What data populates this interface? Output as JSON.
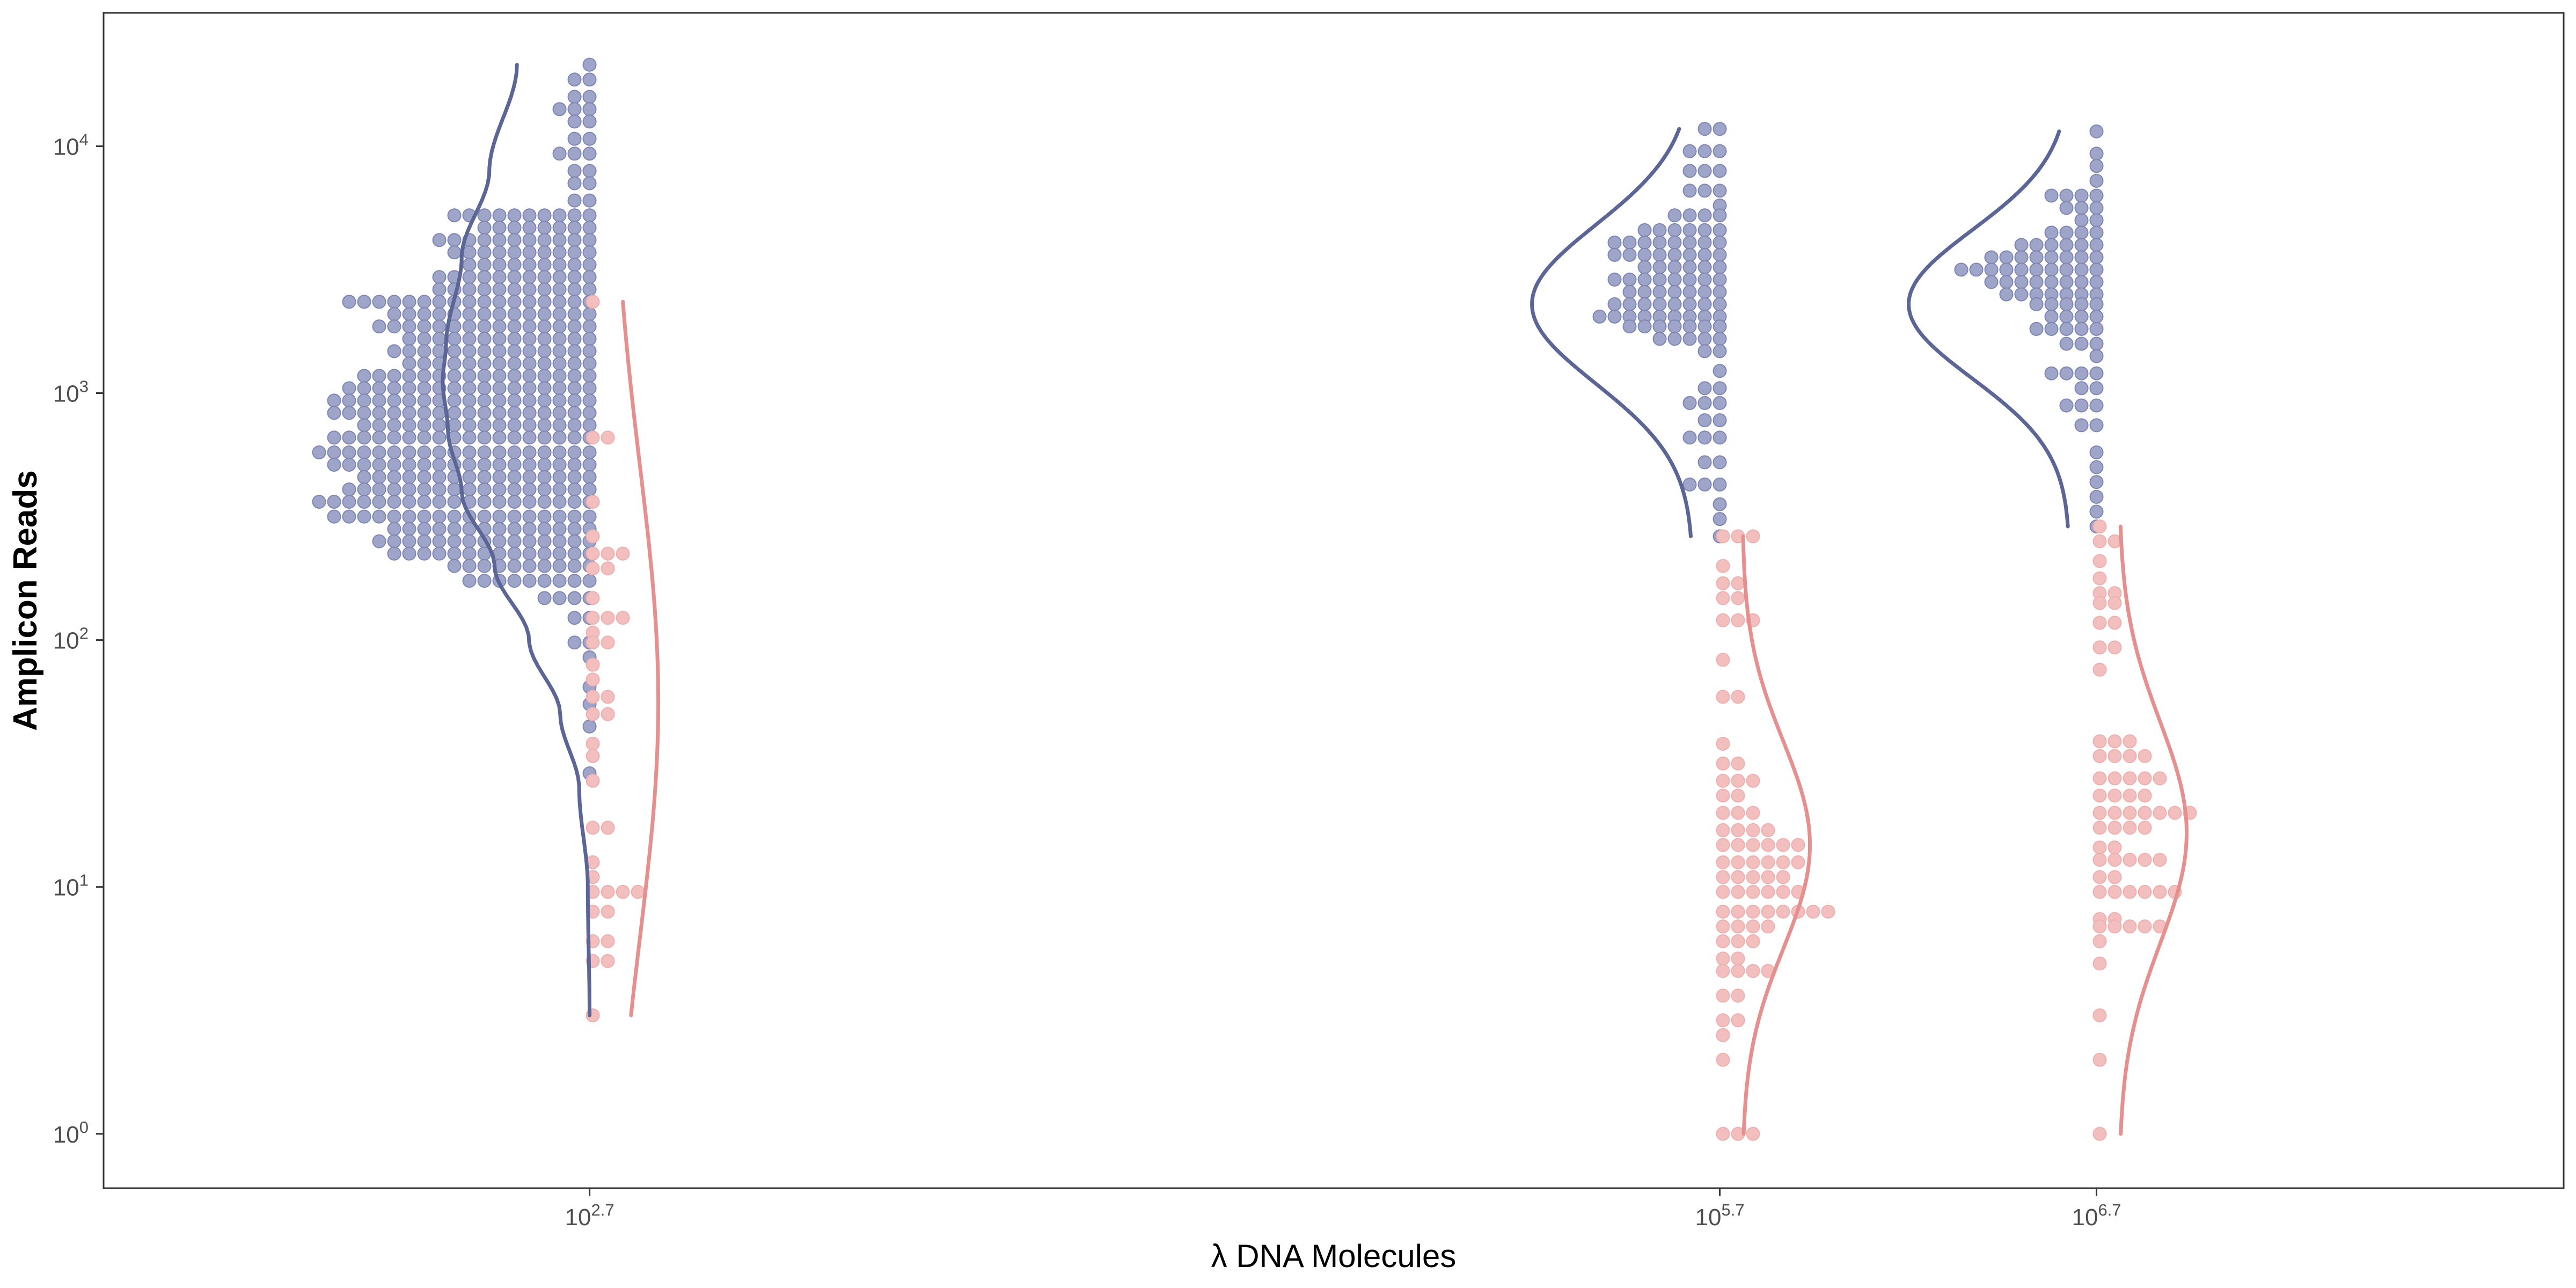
{
  "chart_data": {
    "type": "scatter",
    "subtype": "dotplot-with-density-curves",
    "xlabel": "λ DNA Molecules",
    "ylabel": "Amplicon Reads",
    "x_scale": "log10",
    "y_scale": "log10",
    "x_ticks": [
      {
        "exponent": 2.7,
        "base": "10",
        "sup": "2.7"
      },
      {
        "exponent": 5.7,
        "base": "10",
        "sup": "5.7"
      },
      {
        "exponent": 6.7,
        "base": "10",
        "sup": "6.7"
      }
    ],
    "y_ticks": [
      {
        "exponent": 0,
        "base": "10",
        "sup": "0"
      },
      {
        "exponent": 1,
        "base": "10",
        "sup": "1"
      },
      {
        "exponent": 2,
        "base": "10",
        "sup": "2"
      },
      {
        "exponent": 3,
        "base": "10",
        "sup": "3"
      },
      {
        "exponent": 4,
        "base": "10",
        "sup": "4"
      }
    ],
    "xlim_log10": [
      1.41,
      7.94
    ],
    "ylim_log10": [
      -0.22,
      4.54
    ],
    "grid": false,
    "colors": {
      "blue": "#5b6697",
      "blue_fill": "#9ea5c8",
      "pink": "#e5908f",
      "pink_fill": "#f2bfbe"
    },
    "groups": [
      {
        "x_log10": 2.7,
        "blue_bins": [
          [
            4.33,
            1
          ],
          [
            4.27,
            2
          ],
          [
            4.2,
            2
          ],
          [
            4.15,
            3
          ],
          [
            4.1,
            2
          ],
          [
            4.03,
            2
          ],
          [
            3.97,
            3
          ],
          [
            3.9,
            2
          ],
          [
            3.85,
            2
          ],
          [
            3.78,
            2
          ],
          [
            3.72,
            10
          ],
          [
            3.67,
            8
          ],
          [
            3.62,
            11
          ],
          [
            3.57,
            10
          ],
          [
            3.52,
            9
          ],
          [
            3.47,
            11
          ],
          [
            3.42,
            11
          ],
          [
            3.37,
            17
          ],
          [
            3.32,
            14
          ],
          [
            3.27,
            15
          ],
          [
            3.22,
            13
          ],
          [
            3.17,
            14
          ],
          [
            3.12,
            13
          ],
          [
            3.07,
            16
          ],
          [
            3.02,
            17
          ],
          [
            2.97,
            18
          ],
          [
            2.92,
            18
          ],
          [
            2.87,
            16
          ],
          [
            2.82,
            18
          ],
          [
            2.76,
            19
          ],
          [
            2.71,
            18
          ],
          [
            2.66,
            16
          ],
          [
            2.61,
            17
          ],
          [
            2.56,
            19
          ],
          [
            2.5,
            18
          ],
          [
            2.45,
            14
          ],
          [
            2.4,
            15
          ],
          [
            2.35,
            14
          ],
          [
            2.3,
            10
          ],
          [
            2.24,
            9
          ],
          [
            2.17,
            4
          ],
          [
            2.09,
            2
          ],
          [
            1.99,
            2
          ],
          [
            1.93,
            1
          ],
          [
            1.81,
            1
          ],
          [
            1.74,
            1
          ],
          [
            1.65,
            1
          ],
          [
            1.46,
            1
          ]
        ],
        "pink_bins": [
          [
            3.37,
            1
          ],
          [
            2.82,
            2
          ],
          [
            2.56,
            1
          ],
          [
            2.42,
            1
          ],
          [
            2.35,
            3
          ],
          [
            2.29,
            2
          ],
          [
            2.17,
            1
          ],
          [
            2.09,
            3
          ],
          [
            2.03,
            1
          ],
          [
            1.99,
            2
          ],
          [
            1.9,
            1
          ],
          [
            1.84,
            1
          ],
          [
            1.77,
            2
          ],
          [
            1.7,
            2
          ],
          [
            1.58,
            1
          ],
          [
            1.53,
            1
          ],
          [
            1.43,
            1
          ],
          [
            1.24,
            2
          ],
          [
            1.1,
            1
          ],
          [
            1.04,
            1
          ],
          [
            0.98,
            4
          ],
          [
            0.9,
            2
          ],
          [
            0.78,
            2
          ],
          [
            0.7,
            2
          ],
          [
            0.48,
            1
          ]
        ],
        "blue_curve_range": [
          0.48,
          4.33
        ],
        "blue_curve_anchor": [
          [
            4.33,
            0.42
          ],
          [
            3.9,
            0.58
          ],
          [
            3.55,
            0.74
          ],
          [
            3.2,
            0.83
          ],
          [
            3.05,
            0.85
          ],
          [
            2.85,
            0.82
          ],
          [
            2.6,
            0.74
          ],
          [
            2.3,
            0.55
          ],
          [
            2.0,
            0.35
          ],
          [
            1.7,
            0.17
          ],
          [
            1.4,
            0.06
          ],
          [
            1.0,
            0.01
          ],
          [
            0.48,
            0.0
          ]
        ],
        "pink_curve_range": [
          0.48,
          3.37
        ],
        "pink_curve_peak_log10": 1.75,
        "pink_curve_sd": 0.95
      },
      {
        "x_log10": 5.7,
        "blue_bins": [
          [
            4.07,
            2
          ],
          [
            3.98,
            3
          ],
          [
            3.9,
            3
          ],
          [
            3.82,
            3
          ],
          [
            3.76,
            1
          ],
          [
            3.72,
            4
          ],
          [
            3.66,
            6
          ],
          [
            3.61,
            8
          ],
          [
            3.56,
            8
          ],
          [
            3.51,
            6
          ],
          [
            3.46,
            8
          ],
          [
            3.41,
            7
          ],
          [
            3.36,
            8
          ],
          [
            3.31,
            9
          ],
          [
            3.27,
            7
          ],
          [
            3.22,
            5
          ],
          [
            3.17,
            2
          ],
          [
            3.09,
            1
          ],
          [
            3.02,
            2
          ],
          [
            2.96,
            3
          ],
          [
            2.89,
            2
          ],
          [
            2.82,
            3
          ],
          [
            2.72,
            2
          ],
          [
            2.63,
            3
          ],
          [
            2.55,
            1
          ],
          [
            2.49,
            1
          ],
          [
            2.42,
            1
          ]
        ],
        "pink_bins": [
          [
            2.42,
            3
          ],
          [
            2.3,
            1
          ],
          [
            2.23,
            2
          ],
          [
            2.17,
            2
          ],
          [
            2.08,
            3
          ],
          [
            1.92,
            1
          ],
          [
            1.77,
            2
          ],
          [
            1.58,
            1
          ],
          [
            1.5,
            2
          ],
          [
            1.43,
            3
          ],
          [
            1.37,
            2
          ],
          [
            1.3,
            3
          ],
          [
            1.23,
            4
          ],
          [
            1.17,
            6
          ],
          [
            1.1,
            6
          ],
          [
            1.04,
            5
          ],
          [
            0.98,
            6
          ],
          [
            0.9,
            8
          ],
          [
            0.84,
            4
          ],
          [
            0.78,
            3
          ],
          [
            0.71,
            2
          ],
          [
            0.66,
            4
          ],
          [
            0.56,
            2
          ],
          [
            0.46,
            2
          ],
          [
            0.4,
            1
          ],
          [
            0.3,
            1
          ],
          [
            0.0,
            3
          ]
        ],
        "blue_curve_range": [
          2.42,
          4.07
        ],
        "blue_curve_peak_log10": 3.36,
        "blue_curve_sd": 0.32,
        "pink_curve_range": [
          0.0,
          2.42
        ],
        "pink_curve_peak_log10": 1.17,
        "pink_curve_sd": 0.42
      },
      {
        "x_log10": 6.7,
        "blue_bins": [
          [
            4.06,
            1
          ],
          [
            3.97,
            1
          ],
          [
            3.92,
            1
          ],
          [
            3.86,
            1
          ],
          [
            3.8,
            4
          ],
          [
            3.75,
            3
          ],
          [
            3.7,
            2
          ],
          [
            3.65,
            4
          ],
          [
            3.6,
            6
          ],
          [
            3.55,
            8
          ],
          [
            3.5,
            10
          ],
          [
            3.45,
            8
          ],
          [
            3.4,
            7
          ],
          [
            3.36,
            5
          ],
          [
            3.31,
            4
          ],
          [
            3.26,
            5
          ],
          [
            3.2,
            3
          ],
          [
            3.15,
            1
          ],
          [
            3.08,
            4
          ],
          [
            3.02,
            2
          ],
          [
            2.95,
            3
          ],
          [
            2.87,
            2
          ],
          [
            2.76,
            1
          ],
          [
            2.7,
            1
          ],
          [
            2.64,
            1
          ],
          [
            2.58,
            1
          ],
          [
            2.52,
            1
          ],
          [
            2.46,
            1
          ]
        ],
        "pink_bins": [
          [
            2.46,
            1
          ],
          [
            2.4,
            2
          ],
          [
            2.32,
            1
          ],
          [
            2.25,
            1
          ],
          [
            2.19,
            2
          ],
          [
            2.15,
            2
          ],
          [
            2.07,
            2
          ],
          [
            1.97,
            2
          ],
          [
            1.88,
            1
          ],
          [
            1.59,
            3
          ],
          [
            1.53,
            4
          ],
          [
            1.44,
            5
          ],
          [
            1.37,
            4
          ],
          [
            1.3,
            7
          ],
          [
            1.24,
            4
          ],
          [
            1.16,
            2
          ],
          [
            1.11,
            5
          ],
          [
            1.04,
            2
          ],
          [
            0.98,
            6
          ],
          [
            0.87,
            2
          ],
          [
            0.84,
            5
          ],
          [
            0.78,
            1
          ],
          [
            0.69,
            1
          ],
          [
            0.48,
            1
          ],
          [
            0.3,
            1
          ],
          [
            0.0,
            1
          ]
        ],
        "blue_curve_range": [
          2.46,
          4.06
        ],
        "blue_curve_peak_log10": 3.36,
        "blue_curve_sd": 0.3,
        "pink_curve_range": [
          0.0,
          2.46
        ],
        "pink_curve_peak_log10": 1.22,
        "pink_curve_sd": 0.45
      }
    ]
  }
}
